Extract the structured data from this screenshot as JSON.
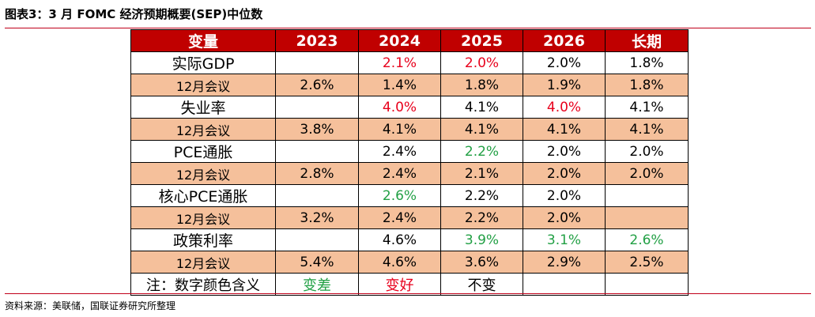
{
  "title": "图表3：3 月 FOMC 经济预期概要(SEP)中位数",
  "colors": {
    "header_bg": "#c00000",
    "band_bg": "#f5c09b",
    "worse": "#22a045",
    "better": "#e8001c"
  },
  "table": {
    "headers": [
      "变量",
      "2023",
      "2024",
      "2025",
      "2026",
      "长期"
    ],
    "rows": [
      {
        "label": "实际GDP",
        "sub": false,
        "cells": [
          {
            "v": "",
            "c": ""
          },
          {
            "v": "2.1%",
            "c": "red"
          },
          {
            "v": "2.0%",
            "c": "red"
          },
          {
            "v": "2.0%",
            "c": ""
          },
          {
            "v": "1.8%",
            "c": ""
          }
        ]
      },
      {
        "label": "12月会议",
        "sub": true,
        "cells": [
          {
            "v": "2.6%",
            "c": ""
          },
          {
            "v": "1.4%",
            "c": ""
          },
          {
            "v": "1.8%",
            "c": ""
          },
          {
            "v": "1.9%",
            "c": ""
          },
          {
            "v": "1.8%",
            "c": ""
          }
        ]
      },
      {
        "label": "失业率",
        "sub": false,
        "cells": [
          {
            "v": "",
            "c": ""
          },
          {
            "v": "4.0%",
            "c": "red"
          },
          {
            "v": "4.1%",
            "c": ""
          },
          {
            "v": "4.0%",
            "c": "red"
          },
          {
            "v": "4.1%",
            "c": ""
          }
        ]
      },
      {
        "label": "12月会议",
        "sub": true,
        "cells": [
          {
            "v": "3.8%",
            "c": ""
          },
          {
            "v": "4.1%",
            "c": ""
          },
          {
            "v": "4.1%",
            "c": ""
          },
          {
            "v": "4.1%",
            "c": ""
          },
          {
            "v": "4.1%",
            "c": ""
          }
        ]
      },
      {
        "label": "PCE通胀",
        "sub": false,
        "cells": [
          {
            "v": "",
            "c": ""
          },
          {
            "v": "2.4%",
            "c": ""
          },
          {
            "v": "2.2%",
            "c": "green"
          },
          {
            "v": "2.0%",
            "c": ""
          },
          {
            "v": "2.0%",
            "c": ""
          }
        ]
      },
      {
        "label": "12月会议",
        "sub": true,
        "cells": [
          {
            "v": "2.8%",
            "c": ""
          },
          {
            "v": "2.4%",
            "c": ""
          },
          {
            "v": "2.1%",
            "c": ""
          },
          {
            "v": "2.0%",
            "c": ""
          },
          {
            "v": "2.0%",
            "c": ""
          }
        ]
      },
      {
        "label": "核心PCE通胀",
        "sub": false,
        "cells": [
          {
            "v": "",
            "c": ""
          },
          {
            "v": "2.6%",
            "c": "green"
          },
          {
            "v": "2.2%",
            "c": ""
          },
          {
            "v": "2.0%",
            "c": ""
          },
          {
            "v": "",
            "c": ""
          }
        ]
      },
      {
        "label": "12月会议",
        "sub": true,
        "cells": [
          {
            "v": "3.2%",
            "c": ""
          },
          {
            "v": "2.4%",
            "c": ""
          },
          {
            "v": "2.2%",
            "c": ""
          },
          {
            "v": "2.0%",
            "c": ""
          },
          {
            "v": "",
            "c": ""
          }
        ]
      },
      {
        "label": "政策利率",
        "sub": false,
        "cells": [
          {
            "v": "",
            "c": ""
          },
          {
            "v": "4.6%",
            "c": ""
          },
          {
            "v": "3.9%",
            "c": "green"
          },
          {
            "v": "3.1%",
            "c": "green"
          },
          {
            "v": "2.6%",
            "c": "green"
          }
        ]
      },
      {
        "label": "12月会议",
        "sub": true,
        "cells": [
          {
            "v": "5.4%",
            "c": ""
          },
          {
            "v": "4.6%",
            "c": ""
          },
          {
            "v": "3.6%",
            "c": ""
          },
          {
            "v": "2.9%",
            "c": ""
          },
          {
            "v": "2.5%",
            "c": ""
          }
        ]
      }
    ],
    "note": {
      "label": "注：数字颜色含义",
      "items": [
        {
          "v": "变差",
          "c": "green"
        },
        {
          "v": "变好",
          "c": "red"
        },
        {
          "v": "不变",
          "c": ""
        },
        {
          "v": "",
          "c": ""
        },
        {
          "v": "",
          "c": ""
        }
      ]
    }
  },
  "source": "资料来源：美联储，国联证券研究所整理"
}
